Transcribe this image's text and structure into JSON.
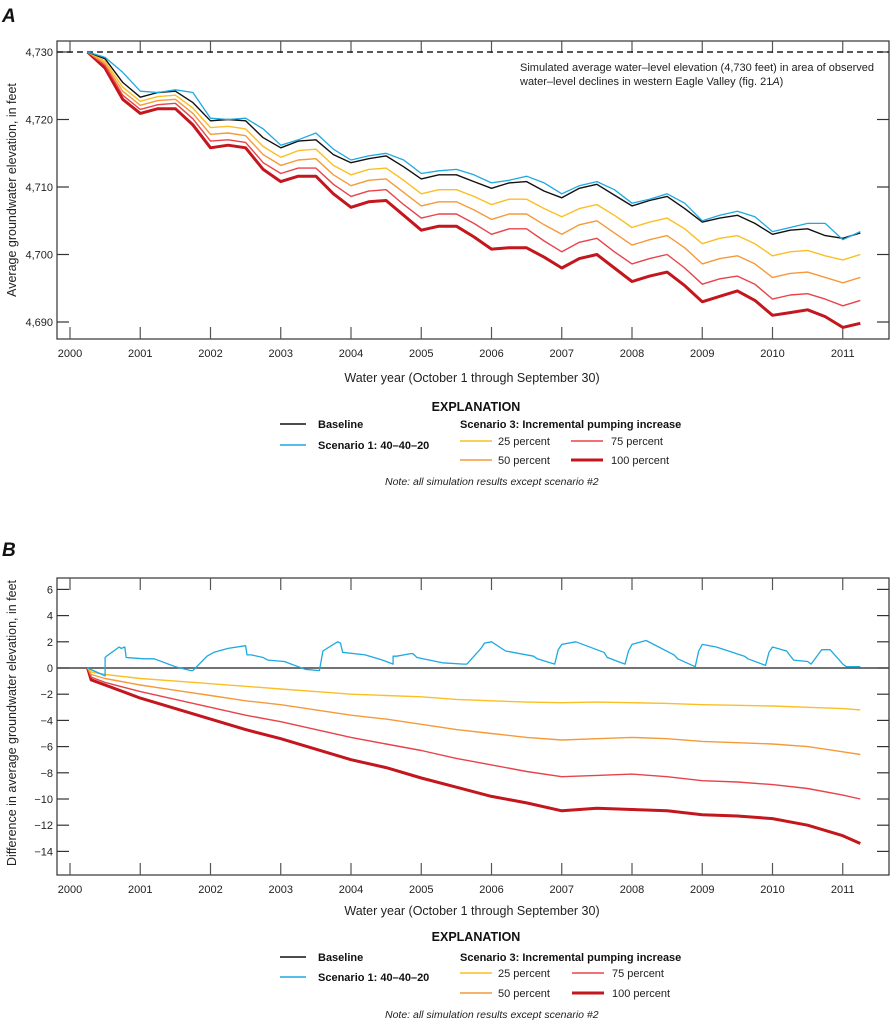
{
  "colors": {
    "baseline": "#111111",
    "scenario1": "#1ea9e1",
    "p25": "#fbbf24",
    "p50": "#f59a3a",
    "p75": "#e8434a",
    "p100": "#c3161d",
    "axis": "#555555"
  },
  "chart_data": [
    {
      "panel": "A",
      "type": "line",
      "title": "",
      "xlabel": "Water year (October 1 through September 30)",
      "ylabel": "Average groundwater elevation, in feet",
      "xlim": [
        1999.8,
        2011.9
      ],
      "ylim": [
        4688.5,
        4731.7
      ],
      "x_ticks": [
        2000,
        2001,
        2002,
        2003,
        2004,
        2005,
        2006,
        2007,
        2008,
        2009,
        2010,
        2011
      ],
      "x_tick_labels": [
        "2000",
        "2001",
        "2002",
        "2003",
        "2004",
        "2005",
        "2006",
        "2007",
        "2008",
        "2009",
        "2010",
        "2011"
      ],
      "y_ticks": [
        4690,
        4700,
        4710,
        4720,
        4730
      ],
      "y_tick_labels": [
        "4,690",
        "4,700",
        "4,710",
        "4,720",
        "4,730"
      ],
      "grid": false,
      "reference_line": {
        "y": 4730,
        "style": "dashed",
        "label_line1": "Simulated average water–level elevation (4,730 feet) in area of observed",
        "label_line2": "water–level declines in western Eagle Valley (fig. 21",
        "label_italic": "A",
        "label_close": ")"
      },
      "x": [
        2000.25,
        2000.5,
        2000.75,
        2001.0,
        2001.25,
        2001.5,
        2001.75,
        2002.0,
        2002.25,
        2002.5,
        2002.75,
        2003.0,
        2003.25,
        2003.5,
        2003.75,
        2004.0,
        2004.25,
        2004.5,
        2004.75,
        2005.0,
        2005.25,
        2005.5,
        2005.75,
        2006.0,
        2006.25,
        2006.5,
        2006.75,
        2007.0,
        2007.25,
        2007.5,
        2007.75,
        2008.0,
        2008.25,
        2008.5,
        2008.75,
        2009.0,
        2009.25,
        2009.5,
        2009.75,
        2010.0,
        2010.25,
        2010.5,
        2010.75,
        2011.0,
        2011.25
      ],
      "series": [
        {
          "name": "Baseline",
          "key": "baseline",
          "values": [
            4730.0,
            4729.0,
            4725.5,
            4723.3,
            4724.0,
            4724.2,
            4722.5,
            4719.8,
            4720.0,
            4719.8,
            4717.3,
            4715.8,
            4716.8,
            4717.0,
            4714.8,
            4713.6,
            4714.2,
            4714.6,
            4713.0,
            4711.2,
            4711.8,
            4711.8,
            4710.8,
            4709.8,
            4710.6,
            4710.8,
            4709.4,
            4708.4,
            4709.8,
            4710.4,
            4708.8,
            4707.2,
            4708.0,
            4708.6,
            4706.8,
            4704.8,
            4705.4,
            4705.8,
            4704.6,
            4703.0,
            4703.6,
            4703.8,
            4702.8,
            4702.4,
            4703.2
          ]
        },
        {
          "name": "Scenario 1: 40–40–20",
          "key": "scenario1",
          "values": [
            4730.0,
            4729.2,
            4727.0,
            4724.2,
            4724.0,
            4724.4,
            4724.0,
            4720.2,
            4720.0,
            4720.2,
            4718.6,
            4716.2,
            4717.0,
            4718.0,
            4715.6,
            4714.0,
            4714.6,
            4715.0,
            4714.0,
            4712.0,
            4712.4,
            4712.6,
            4711.8,
            4710.6,
            4711.0,
            4711.6,
            4710.6,
            4709.0,
            4710.2,
            4710.8,
            4709.6,
            4707.6,
            4708.2,
            4709.0,
            4707.6,
            4705.0,
            4705.8,
            4706.4,
            4705.6,
            4703.4,
            4704.0,
            4704.6,
            4704.6,
            4702.2,
            4703.4
          ]
        },
        {
          "name": "25 percent",
          "key": "p25",
          "values": [
            4730.0,
            4728.6,
            4724.8,
            4722.7,
            4723.4,
            4723.6,
            4721.7,
            4718.8,
            4719.0,
            4718.6,
            4716.0,
            4714.4,
            4715.4,
            4715.6,
            4713.2,
            4711.8,
            4712.6,
            4712.8,
            4711.0,
            4709.0,
            4709.6,
            4709.6,
            4708.6,
            4707.4,
            4708.2,
            4708.2,
            4706.8,
            4705.6,
            4706.8,
            4707.4,
            4705.8,
            4704.0,
            4704.8,
            4705.4,
            4703.8,
            4701.6,
            4702.4,
            4702.8,
            4701.6,
            4699.8,
            4700.4,
            4700.6,
            4699.8,
            4699.2,
            4700.0
          ]
        },
        {
          "name": "50 percent",
          "key": "p50",
          "values": [
            4730.0,
            4728.3,
            4724.2,
            4722.1,
            4722.8,
            4723.0,
            4720.9,
            4717.8,
            4718.0,
            4717.6,
            4714.8,
            4713.2,
            4714.0,
            4714.2,
            4711.8,
            4710.2,
            4711.0,
            4711.2,
            4709.2,
            4707.2,
            4707.8,
            4707.8,
            4706.6,
            4705.2,
            4706.0,
            4706.0,
            4704.4,
            4703.0,
            4704.4,
            4705.0,
            4703.2,
            4701.4,
            4702.2,
            4702.8,
            4701.0,
            4698.6,
            4699.4,
            4699.8,
            4698.6,
            4696.6,
            4697.2,
            4697.4,
            4696.6,
            4695.8,
            4696.6
          ]
        },
        {
          "name": "75 percent",
          "key": "p75",
          "values": [
            4730.0,
            4728.0,
            4723.6,
            4721.5,
            4722.2,
            4722.4,
            4720.1,
            4716.8,
            4717.0,
            4716.6,
            4713.6,
            4712.0,
            4712.8,
            4712.8,
            4710.4,
            4708.6,
            4709.4,
            4709.6,
            4707.4,
            4705.4,
            4706.0,
            4706.0,
            4704.6,
            4703.0,
            4703.8,
            4703.8,
            4702.0,
            4700.4,
            4701.8,
            4702.4,
            4700.4,
            4698.6,
            4699.4,
            4700.0,
            4698.0,
            4695.6,
            4696.4,
            4696.8,
            4695.6,
            4693.4,
            4694.0,
            4694.2,
            4693.4,
            4692.4,
            4693.2
          ]
        },
        {
          "name": "100 percent",
          "key": "p100",
          "values": [
            4730.0,
            4727.6,
            4723.0,
            4720.9,
            4721.6,
            4721.6,
            4719.2,
            4715.8,
            4716.2,
            4715.8,
            4712.6,
            4710.8,
            4711.6,
            4711.6,
            4709.0,
            4707.0,
            4707.8,
            4708.0,
            4705.8,
            4703.6,
            4704.2,
            4704.2,
            4702.6,
            4700.8,
            4701.0,
            4701.0,
            4699.6,
            4698.0,
            4699.4,
            4700.0,
            4698.0,
            4696.0,
            4696.8,
            4697.4,
            4695.4,
            4693.0,
            4693.8,
            4694.6,
            4693.2,
            4691.0,
            4691.4,
            4691.8,
            4690.8,
            4689.2,
            4689.8
          ]
        }
      ]
    },
    {
      "panel": "B",
      "type": "line",
      "title": "",
      "xlabel": "Water year (October 1 through September 30)",
      "ylabel": "Difference in average groundwater elevation, in feet",
      "xlim": [
        1999.8,
        2011.9
      ],
      "ylim": [
        -15.8,
        6.8
      ],
      "x_ticks": [
        2000,
        2001,
        2002,
        2003,
        2004,
        2005,
        2006,
        2007,
        2008,
        2009,
        2010,
        2011
      ],
      "x_tick_labels": [
        "2000",
        "2001",
        "2002",
        "2003",
        "2004",
        "2005",
        "2006",
        "2007",
        "2008",
        "2009",
        "2010",
        "2011"
      ],
      "y_ticks": [
        -14,
        -12,
        -10,
        -8,
        -6,
        -4,
        -2,
        0,
        2,
        4,
        6
      ],
      "y_tick_labels": [
        "−14",
        "−12",
        "−10",
        "−8",
        "−6",
        "−4",
        "−2",
        "0",
        "2",
        "4",
        "6"
      ],
      "grid": false,
      "zero_line": true,
      "scenario1_x": [
        2000.25,
        2000.5,
        2000.5,
        2000.52,
        2000.7,
        2000.73,
        2000.78,
        2000.8,
        2001.05,
        2001.2,
        2001.4,
        2001.5,
        2001.72,
        2001.75,
        2001.95,
        2002.05,
        2002.25,
        2002.5,
        2002.52,
        2002.58,
        2002.75,
        2002.78,
        2002.82,
        2003.05,
        2003.15,
        2003.35,
        2003.55,
        2003.6,
        2003.78,
        2003.81,
        2003.85,
        2003.88,
        2004.2,
        2004.45,
        2004.6,
        2004.6,
        2004.65,
        2004.85,
        2004.88,
        2004.94,
        2005.3,
        2005.6,
        2005.65,
        2005.85,
        2005.9,
        2006.0,
        2006.2,
        2006.6,
        2006.65,
        2006.9,
        2006.95,
        2007.0,
        2007.2,
        2007.6,
        2007.65,
        2007.9,
        2007.95,
        2008.0,
        2008.2,
        2008.6,
        2008.65,
        2008.9,
        2008.95,
        2009.0,
        2009.2,
        2009.6,
        2009.65,
        2009.9,
        2009.95,
        2010.0,
        2010.2,
        2010.3,
        2010.5,
        2010.55,
        2010.7,
        2010.82,
        2011.0,
        2011.05,
        2011.25
      ],
      "series": [
        {
          "name": "Scenario 1: 40–40–20",
          "key": "scenario1",
          "values": [
            0.0,
            -0.6,
            0.8,
            0.9,
            1.6,
            1.5,
            1.6,
            0.8,
            0.7,
            0.7,
            0.3,
            0.1,
            -0.2,
            -0.2,
            0.9,
            1.2,
            1.5,
            1.7,
            1.0,
            1.0,
            0.8,
            0.7,
            0.6,
            0.5,
            0.3,
            -0.1,
            -0.2,
            1.3,
            1.9,
            2.0,
            1.9,
            1.2,
            1.0,
            0.6,
            0.3,
            0.9,
            0.9,
            1.1,
            1.1,
            0.8,
            0.4,
            0.3,
            0.3,
            1.5,
            1.9,
            2.0,
            1.3,
            0.9,
            0.7,
            0.3,
            1.4,
            1.8,
            2.0,
            1.2,
            0.8,
            0.3,
            1.3,
            1.8,
            2.1,
            1.0,
            0.7,
            0.1,
            1.3,
            1.8,
            1.6,
            0.9,
            0.7,
            0.2,
            1.2,
            1.6,
            1.3,
            0.6,
            0.5,
            0.3,
            1.4,
            1.4,
            0.3,
            0.1,
            0.1
          ]
        },
        {
          "name": "25 percent",
          "key": "p25",
          "values": []
        },
        {
          "name": "50 percent",
          "key": "p50",
          "values": []
        },
        {
          "name": "75 percent",
          "key": "p75",
          "values": []
        },
        {
          "name": "100 percent",
          "key": "p100",
          "values": []
        }
      ],
      "scenario3_x": [
        2000.25,
        2000.3,
        2000.5,
        2001.0,
        2001.5,
        2002.0,
        2002.5,
        2003.0,
        2003.5,
        2004.0,
        2004.5,
        2005.0,
        2005.5,
        2006.0,
        2006.5,
        2007.0,
        2007.5,
        2008.0,
        2008.5,
        2009.0,
        2009.5,
        2010.0,
        2010.5,
        2011.0,
        2011.25
      ],
      "scenario3_series": {
        "p25": [
          0.0,
          -0.3,
          -0.5,
          -0.8,
          -1.0,
          -1.2,
          -1.4,
          -1.6,
          -1.8,
          -2.0,
          -2.1,
          -2.2,
          -2.4,
          -2.5,
          -2.6,
          -2.65,
          -2.6,
          -2.65,
          -2.7,
          -2.8,
          -2.85,
          -2.9,
          -3.0,
          -3.1,
          -3.2
        ],
        "p50": [
          0.0,
          -0.5,
          -0.8,
          -1.3,
          -1.7,
          -2.1,
          -2.5,
          -2.8,
          -3.2,
          -3.6,
          -3.9,
          -4.3,
          -4.7,
          -5.0,
          -5.3,
          -5.5,
          -5.4,
          -5.3,
          -5.4,
          -5.6,
          -5.7,
          -5.8,
          -6.0,
          -6.4,
          -6.6
        ]
      },
      "scenario3_series_b": {
        "p75": [
          0.0,
          -0.7,
          -1.1,
          -1.8,
          -2.4,
          -3.0,
          -3.6,
          -4.1,
          -4.7,
          -5.3,
          -5.8,
          -6.3,
          -6.9,
          -7.4,
          -7.9,
          -8.3,
          -8.2,
          -8.1,
          -8.3,
          -8.6,
          -8.7,
          -8.9,
          -9.2,
          -9.7,
          -10.0
        ],
        "p100": [
          0.0,
          -0.9,
          -1.3,
          -2.3,
          -3.1,
          -3.9,
          -4.7,
          -5.4,
          -6.2,
          -7.0,
          -7.6,
          -8.4,
          -9.1,
          -9.8,
          -10.3,
          -10.9,
          -10.7,
          -10.8,
          -10.9,
          -11.2,
          -11.3,
          -11.5,
          -12.0,
          -12.8,
          -13.4
        ]
      }
    }
  ],
  "panels": {
    "a_letter": "A",
    "b_letter": "B"
  },
  "legend": {
    "title": "EXPLANATION",
    "baseline": "Baseline",
    "scenario1": "Scenario 1: 40–40–20",
    "scenario3_head": "Scenario 3: Incremental pumping increase",
    "p25": "25 percent",
    "p50": "50 percent",
    "p75": "75 percent",
    "p100": "100 percent",
    "note": "Note: all simulation results except scenario #2"
  }
}
